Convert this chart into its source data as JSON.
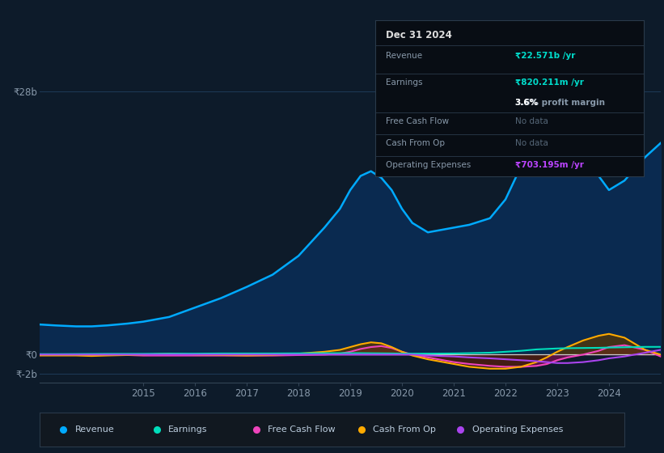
{
  "bg_color": "#0d1b2a",
  "plot_bg_color": "#0d1b2a",
  "years": [
    2013.0,
    2013.3,
    2013.7,
    2014.0,
    2014.3,
    2014.7,
    2015.0,
    2015.5,
    2016.0,
    2016.5,
    2017.0,
    2017.5,
    2018.0,
    2018.5,
    2018.8,
    2019.0,
    2019.2,
    2019.4,
    2019.6,
    2019.8,
    2020.0,
    2020.2,
    2020.5,
    2021.0,
    2021.3,
    2021.7,
    2022.0,
    2022.3,
    2022.6,
    2022.8,
    2023.0,
    2023.2,
    2023.5,
    2023.8,
    2024.0,
    2024.3,
    2024.7,
    2025.0
  ],
  "revenue": [
    3.2,
    3.1,
    3.0,
    3.0,
    3.1,
    3.3,
    3.5,
    4.0,
    5.0,
    6.0,
    7.2,
    8.5,
    10.5,
    13.5,
    15.5,
    17.5,
    19.0,
    19.5,
    18.8,
    17.5,
    15.5,
    14.0,
    13.0,
    13.5,
    13.8,
    14.5,
    16.5,
    20.0,
    25.0,
    27.0,
    27.8,
    27.0,
    24.0,
    19.0,
    17.5,
    18.5,
    21.0,
    22.5
  ],
  "earnings": [
    0.05,
    0.05,
    0.06,
    0.07,
    0.08,
    0.08,
    0.08,
    0.1,
    0.1,
    0.12,
    0.12,
    0.12,
    0.13,
    0.15,
    0.15,
    0.15,
    0.15,
    0.14,
    0.13,
    0.12,
    0.1,
    0.1,
    0.1,
    0.12,
    0.15,
    0.2,
    0.3,
    0.4,
    0.55,
    0.6,
    0.65,
    0.68,
    0.7,
    0.72,
    0.75,
    0.78,
    0.82,
    0.82
  ],
  "free_cash_flow": [
    -0.05,
    -0.05,
    -0.05,
    -0.05,
    -0.05,
    -0.05,
    -0.1,
    -0.1,
    -0.1,
    -0.1,
    -0.1,
    -0.1,
    -0.05,
    0.0,
    0.1,
    0.3,
    0.6,
    0.8,
    0.9,
    0.7,
    0.3,
    0.0,
    -0.3,
    -0.8,
    -1.0,
    -1.2,
    -1.3,
    -1.3,
    -1.2,
    -1.0,
    -0.6,
    -0.3,
    0.0,
    0.4,
    0.8,
    1.0,
    0.5,
    -0.2
  ],
  "cash_from_op": [
    -0.1,
    -0.1,
    -0.1,
    -0.15,
    -0.1,
    -0.05,
    0.0,
    0.1,
    0.0,
    -0.05,
    -0.1,
    -0.05,
    0.1,
    0.3,
    0.5,
    0.8,
    1.1,
    1.3,
    1.2,
    0.8,
    0.3,
    -0.1,
    -0.5,
    -1.0,
    -1.3,
    -1.5,
    -1.5,
    -1.3,
    -0.8,
    -0.3,
    0.3,
    0.8,
    1.5,
    2.0,
    2.2,
    1.8,
    0.5,
    0.0
  ],
  "op_expenses": [
    0.0,
    0.0,
    0.0,
    0.0,
    0.0,
    0.0,
    0.0,
    0.0,
    0.0,
    0.0,
    0.0,
    0.0,
    0.0,
    0.0,
    0.0,
    0.0,
    0.0,
    0.0,
    0.0,
    0.0,
    0.0,
    0.0,
    -0.1,
    -0.2,
    -0.3,
    -0.4,
    -0.5,
    -0.6,
    -0.7,
    -0.8,
    -0.9,
    -0.9,
    -0.8,
    -0.6,
    -0.4,
    -0.2,
    0.2,
    0.5
  ],
  "ylim_top": 30,
  "ylim_bottom": -3,
  "y_tick_top": 28,
  "y_tick_zero": 0,
  "y_tick_bottom": -2,
  "revenue_color": "#00aaff",
  "revenue_fill": "#0a2a50",
  "earnings_color": "#00ddbb",
  "fcf_color": "#ee44bb",
  "cfo_color": "#ffaa00",
  "opex_color": "#aa44ee",
  "fcf_fill_pos": "#7a1050",
  "fcf_fill_neg": "#7a1050",
  "cfo_fill_pos": "#5a3800",
  "cfo_fill_neg": "#3a2000",
  "info_box": {
    "title": "Dec 31 2024",
    "revenue_label": "Revenue",
    "revenue_value": "₹22.571b /yr",
    "earnings_label": "Earnings",
    "earnings_value": "₹820.211m /yr",
    "margin_text": "3.6% profit margin",
    "margin_pct": "3.6%",
    "fcf_label": "Free Cash Flow",
    "fcf_value": "No data",
    "cfo_label": "Cash From Op",
    "cfo_value": "No data",
    "opex_label": "Operating Expenses",
    "opex_value": "₹703.195m /yr",
    "bg": "#080d14",
    "border": "#2a3a4a",
    "text_color": "#8899aa",
    "value_color": "#00ddcc",
    "opex_value_color": "#bb44ff",
    "nodata_color": "#556677",
    "title_color": "#dddddd",
    "title_fontsize": 8.5,
    "label_fontsize": 7.5,
    "value_fontsize": 7.5
  },
  "legend": [
    {
      "label": "Revenue",
      "color": "#00aaff"
    },
    {
      "label": "Earnings",
      "color": "#00ddbb"
    },
    {
      "label": "Free Cash Flow",
      "color": "#ee44bb"
    },
    {
      "label": "Cash From Op",
      "color": "#ffaa00"
    },
    {
      "label": "Operating Expenses",
      "color": "#aa44ee"
    }
  ],
  "x_ticks": [
    2015,
    2016,
    2017,
    2018,
    2019,
    2020,
    2021,
    2022,
    2023,
    2024
  ],
  "tick_color": "#8899aa",
  "legend_bg": "#111820",
  "legend_border": "#2a3a4a"
}
